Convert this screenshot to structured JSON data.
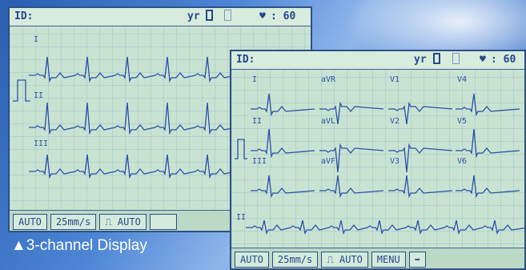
{
  "screen1": {
    "id_label": "ID:",
    "yr_label": "yr",
    "hr_value": ": 60",
    "leads": [
      "I",
      "II",
      "III"
    ],
    "keys": [
      "AUTO",
      "25mm/s",
      "⎍ AUTO"
    ]
  },
  "screen2": {
    "id_label": "ID:",
    "yr_label": "yr",
    "hr_value": ": 60",
    "leads": [
      "I",
      "aVR",
      "V1",
      "V4",
      "II",
      "aVL",
      "V2",
      "V5",
      "III",
      "aVF",
      "V3",
      "V6"
    ],
    "rhythm_lead": "II",
    "keys": [
      "AUTO",
      "25mm/s",
      "⎍ AUTO",
      "MENU",
      "➡"
    ]
  },
  "caption": "▲3-channel Display",
  "colors": {
    "trace": "#2950a8",
    "screen": "#c9e3d2",
    "text": "#26478a"
  }
}
